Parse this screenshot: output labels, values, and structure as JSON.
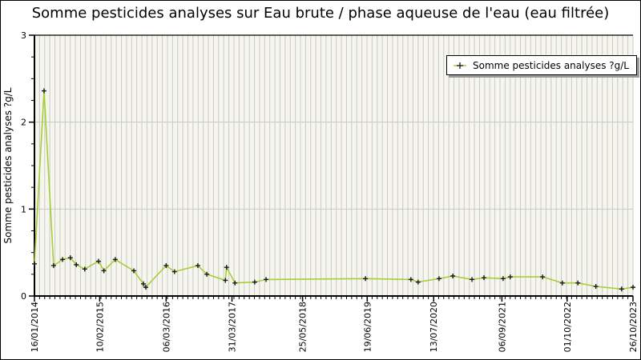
{
  "window": {
    "background": "#ffffff",
    "border_color": "#000000"
  },
  "chart_data": {
    "type": "line",
    "title": "Somme pesticides analyses sur Eau brute / phase aqueuse de l'eau (eau filtrée)",
    "ylabel": "Somme pesticides analyses ?g/L",
    "legend": {
      "label": "Somme pesticides analyses ?g/L",
      "marker": "plus-on-line"
    },
    "ylim": [
      0,
      3
    ],
    "yticks": [
      "0",
      "1",
      "2",
      "3"
    ],
    "y_minor_step": 0.25,
    "y_gridlines": [
      1,
      2
    ],
    "x_minor_gridline_count": 117,
    "grid": "on",
    "legend_position": "top-right",
    "x_ticks": [
      {
        "f": 0.0,
        "label": "16/01/2014"
      },
      {
        "f": 0.109,
        "label": "10/02/2015"
      },
      {
        "f": 0.22,
        "label": "06/03/2016"
      },
      {
        "f": 0.33,
        "label": "31/03/2017"
      },
      {
        "f": 0.448,
        "label": "25/05/2018"
      },
      {
        "f": 0.556,
        "label": "19/06/2019"
      },
      {
        "f": 0.667,
        "label": "13/07/2020"
      },
      {
        "f": 0.781,
        "label": "06/09/2021"
      },
      {
        "f": 0.89,
        "label": "01/10/2022"
      },
      {
        "f": 1.0,
        "label": "26/10/2023"
      }
    ],
    "points": [
      {
        "x": 0.0,
        "y": 0.37
      },
      {
        "x": 0.016,
        "y": 2.36
      },
      {
        "x": 0.032,
        "y": 0.35
      },
      {
        "x": 0.047,
        "y": 0.42
      },
      {
        "x": 0.06,
        "y": 0.44
      },
      {
        "x": 0.07,
        "y": 0.36
      },
      {
        "x": 0.084,
        "y": 0.31
      },
      {
        "x": 0.107,
        "y": 0.4
      },
      {
        "x": 0.116,
        "y": 0.29
      },
      {
        "x": 0.135,
        "y": 0.42
      },
      {
        "x": 0.166,
        "y": 0.29
      },
      {
        "x": 0.182,
        "y": 0.14
      },
      {
        "x": 0.186,
        "y": 0.1
      },
      {
        "x": 0.22,
        "y": 0.35
      },
      {
        "x": 0.234,
        "y": 0.28
      },
      {
        "x": 0.273,
        "y": 0.35
      },
      {
        "x": 0.288,
        "y": 0.25
      },
      {
        "x": 0.319,
        "y": 0.18
      },
      {
        "x": 0.321,
        "y": 0.33
      },
      {
        "x": 0.335,
        "y": 0.15
      },
      {
        "x": 0.368,
        "y": 0.16
      },
      {
        "x": 0.387,
        "y": 0.19
      },
      {
        "x": 0.553,
        "y": 0.2
      },
      {
        "x": 0.629,
        "y": 0.19
      },
      {
        "x": 0.641,
        "y": 0.16
      },
      {
        "x": 0.676,
        "y": 0.2
      },
      {
        "x": 0.699,
        "y": 0.23
      },
      {
        "x": 0.731,
        "y": 0.19
      },
      {
        "x": 0.751,
        "y": 0.21
      },
      {
        "x": 0.783,
        "y": 0.2
      },
      {
        "x": 0.795,
        "y": 0.22
      },
      {
        "x": 0.849,
        "y": 0.22
      },
      {
        "x": 0.882,
        "y": 0.15
      },
      {
        "x": 0.908,
        "y": 0.15
      },
      {
        "x": 0.938,
        "y": 0.11
      },
      {
        "x": 0.981,
        "y": 0.08
      },
      {
        "x": 1.0,
        "y": 0.1
      }
    ],
    "colors": {
      "line": "#a6ce39",
      "marker": "#1a1a1a",
      "grid": "#c9c9c9",
      "plot_bg": "#f6f6ee",
      "axis": "#000000",
      "legend_shadow": "#9a9a9a"
    }
  }
}
